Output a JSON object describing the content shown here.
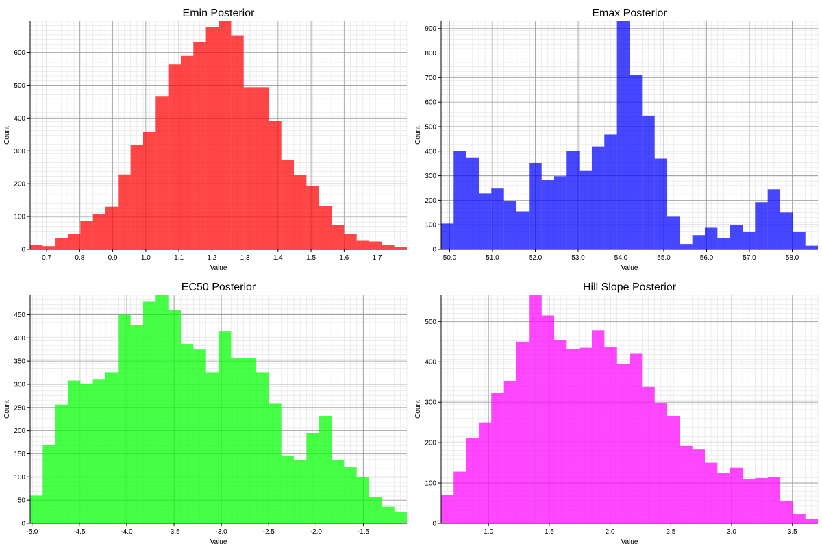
{
  "chart_data": [
    {
      "type": "bar",
      "title": "Emin Posterior",
      "xlabel": "Value",
      "ylabel": "Count",
      "color": "#ff0000",
      "xlim": [
        0.65,
        1.79
      ],
      "ylim": [
        0,
        695
      ],
      "xticks": [
        0.7,
        0.8,
        0.9,
        1.0,
        1.1,
        1.2,
        1.3,
        1.4,
        1.5,
        1.6,
        1.7
      ],
      "xtick_labels": [
        "0.7",
        "0.8",
        "0.9",
        "1.0",
        "1.1",
        "1.2",
        "1.3",
        "1.4",
        "1.5",
        "1.6",
        "1.7"
      ],
      "yticks": [
        0,
        100,
        200,
        300,
        400,
        500,
        600
      ],
      "ytick_labels": [
        "0",
        "100",
        "200",
        "300",
        "400",
        "500",
        "600"
      ],
      "bin_edges": [
        0.65,
        0.688,
        0.726,
        0.764,
        0.802,
        0.84,
        0.878,
        0.916,
        0.954,
        0.992,
        1.03,
        1.068,
        1.106,
        1.144,
        1.182,
        1.22,
        1.258,
        1.296,
        1.334,
        1.372,
        1.41,
        1.448,
        1.486,
        1.524,
        1.562,
        1.6,
        1.638,
        1.676,
        1.714,
        1.752,
        1.79
      ],
      "values": [
        13,
        10,
        35,
        47,
        86,
        108,
        130,
        228,
        318,
        358,
        467,
        563,
        589,
        632,
        677,
        695,
        652,
        494,
        494,
        391,
        272,
        227,
        193,
        132,
        75,
        47,
        26,
        24,
        13,
        7
      ],
      "grid": true
    },
    {
      "type": "bar",
      "title": "Emax Posterior",
      "xlabel": "Value",
      "ylabel": "Count",
      "color": "#0000ff",
      "xlim": [
        49.8,
        58.6
      ],
      "ylim": [
        0,
        930
      ],
      "xticks": [
        50.0,
        51.0,
        52.0,
        53.0,
        54.0,
        55.0,
        56.0,
        57.0,
        58.0
      ],
      "xtick_labels": [
        "50.0",
        "51.0",
        "52.0",
        "53.0",
        "54.0",
        "55.0",
        "56.0",
        "57.0",
        "58.0"
      ],
      "yticks": [
        0,
        100,
        200,
        300,
        400,
        500,
        600,
        700,
        800,
        900
      ],
      "ytick_labels": [
        "0",
        "100",
        "200",
        "300",
        "400",
        "500",
        "600",
        "700",
        "800",
        "900"
      ],
      "bin_edges": [
        49.8,
        50.093,
        50.387,
        50.68,
        50.973,
        51.267,
        51.56,
        51.853,
        52.147,
        52.44,
        52.733,
        53.027,
        53.32,
        53.613,
        53.907,
        54.2,
        54.493,
        54.787,
        55.08,
        55.373,
        55.667,
        55.96,
        56.253,
        56.547,
        56.84,
        57.133,
        57.427,
        57.72,
        58.013,
        58.307,
        58.6
      ],
      "values": [
        105,
        400,
        375,
        228,
        248,
        198,
        155,
        352,
        282,
        298,
        402,
        322,
        420,
        468,
        930,
        712,
        545,
        370,
        133,
        22,
        58,
        88,
        45,
        100,
        72,
        192,
        245,
        150,
        72,
        15
      ],
      "grid": true
    },
    {
      "type": "bar",
      "title": "EC50 Posterior",
      "xlabel": "Value",
      "ylabel": "Count",
      "color": "#00ff00",
      "xlim": [
        -5.02,
        -1.04
      ],
      "ylim": [
        0,
        492
      ],
      "xticks": [
        -5.0,
        -4.5,
        -4.0,
        -3.5,
        -3.0,
        -2.5,
        -2.0,
        -1.5
      ],
      "xtick_labels": [
        "-5.0",
        "-4.5",
        "-4.0",
        "-3.5",
        "-3.0",
        "-2.5",
        "-2.0",
        "-1.5"
      ],
      "yticks": [
        0,
        50,
        100,
        150,
        200,
        250,
        300,
        350,
        400,
        450
      ],
      "ytick_labels": [
        "0",
        "50",
        "100",
        "150",
        "200",
        "250",
        "300",
        "350",
        "400",
        "450"
      ],
      "bin_edges": [
        -5.02,
        -4.887,
        -4.755,
        -4.622,
        -4.489,
        -4.357,
        -4.224,
        -4.091,
        -3.959,
        -3.826,
        -3.693,
        -3.561,
        -3.428,
        -3.295,
        -3.163,
        -3.03,
        -2.897,
        -2.765,
        -2.632,
        -2.499,
        -2.367,
        -2.234,
        -2.101,
        -1.969,
        -1.836,
        -1.703,
        -1.571,
        -1.438,
        -1.305,
        -1.173,
        -1.04
      ],
      "values": [
        60,
        170,
        256,
        308,
        300,
        310,
        326,
        450,
        428,
        478,
        492,
        460,
        387,
        375,
        326,
        415,
        356,
        356,
        326,
        258,
        145,
        137,
        195,
        232,
        137,
        121,
        99,
        57,
        36,
        25
      ],
      "grid": true
    },
    {
      "type": "bar",
      "title": "Hill Slope Posterior",
      "xlabel": "Value",
      "ylabel": "Count",
      "color": "#ff00ff",
      "xlim": [
        0.61,
        3.71
      ],
      "ylim": [
        0,
        565
      ],
      "xticks": [
        1.0,
        1.5,
        2.0,
        2.5,
        3.0,
        3.5
      ],
      "xtick_labels": [
        "1.0",
        "1.5",
        "2.0",
        "2.5",
        "3.0",
        "3.5"
      ],
      "yticks": [
        0,
        100,
        200,
        300,
        400,
        500
      ],
      "ytick_labels": [
        "0",
        "100",
        "200",
        "300",
        "400",
        "500"
      ],
      "bin_edges": [
        0.61,
        0.713,
        0.817,
        0.92,
        1.023,
        1.127,
        1.23,
        1.333,
        1.437,
        1.54,
        1.643,
        1.747,
        1.85,
        1.953,
        2.057,
        2.16,
        2.263,
        2.367,
        2.47,
        2.573,
        2.677,
        2.78,
        2.883,
        2.987,
        3.09,
        3.193,
        3.297,
        3.4,
        3.503,
        3.607,
        3.71
      ],
      "values": [
        70,
        128,
        212,
        250,
        323,
        353,
        450,
        565,
        515,
        453,
        432,
        435,
        478,
        437,
        395,
        420,
        338,
        298,
        265,
        192,
        183,
        150,
        125,
        138,
        110,
        112,
        115,
        55,
        22,
        12
      ],
      "grid": true
    }
  ]
}
